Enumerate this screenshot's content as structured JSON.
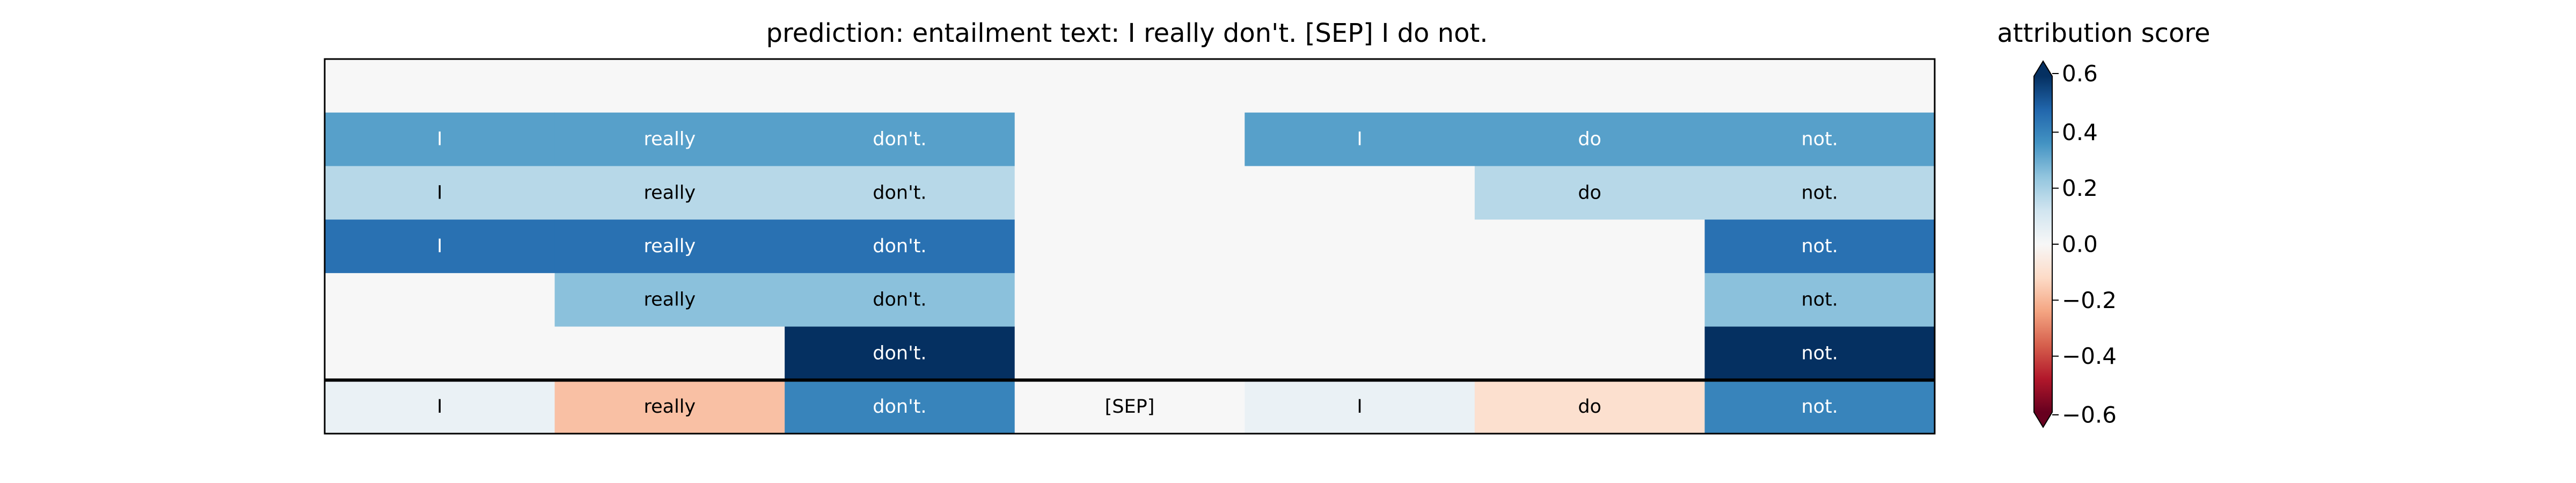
{
  "title": "prediction:  entailment     text:  I really don't. [SEP] I do not.",
  "chart_data": {
    "type": "heatmap",
    "title": "prediction:  entailment     text:  I really don't. [SEP] I do not.",
    "columns": [
      "I",
      "really",
      "don't.",
      "[SEP]",
      "I",
      "do",
      "not."
    ],
    "rows": [
      {
        "values": [
          0,
          0,
          0,
          0,
          0,
          0,
          0
        ],
        "labels": [
          "",
          "",
          "",
          "",
          "",
          "",
          ""
        ]
      },
      {
        "values": [
          0.33,
          0.33,
          0.33,
          0,
          0.33,
          0.33,
          0.33
        ],
        "labels": [
          "I",
          "really",
          "don't.",
          "",
          "I",
          "do",
          "not."
        ]
      },
      {
        "values": [
          0.17,
          0.17,
          0.17,
          0,
          0,
          0.17,
          0.17
        ],
        "labels": [
          "I",
          "really",
          "don't.",
          "",
          "",
          "do",
          "not."
        ]
      },
      {
        "values": [
          0.45,
          0.45,
          0.45,
          0,
          0,
          0,
          0.45
        ],
        "labels": [
          "I",
          "really",
          "don't.",
          "",
          "",
          "",
          "not."
        ]
      },
      {
        "values": [
          0,
          0.25,
          0.25,
          0,
          0,
          0,
          0.25
        ],
        "labels": [
          "",
          "really",
          "don't.",
          "",
          "",
          "",
          "not."
        ]
      },
      {
        "values": [
          0,
          0,
          0.6,
          0,
          0,
          0,
          0.6
        ],
        "labels": [
          "",
          "",
          "don't.",
          "",
          "",
          "",
          "not."
        ]
      },
      {
        "values": [
          0.04,
          -0.18,
          0.4,
          0,
          0.04,
          -0.1,
          0.4
        ],
        "labels": [
          "I",
          "really",
          "don't.",
          "[SEP]",
          "I",
          "do",
          "not."
        ]
      }
    ],
    "colorbar": {
      "label": "attribution score",
      "vmin": -0.6,
      "vmax": 0.6,
      "ticks": [
        0.6,
        0.4,
        0.2,
        0.0,
        -0.2,
        -0.4,
        -0.6
      ],
      "tick_labels": [
        "0.6",
        "0.4",
        "0.2",
        "0.0",
        "−0.2",
        "−0.4",
        "−0.6"
      ],
      "colormap": "RdBu"
    },
    "separator_before_last_row": true
  }
}
